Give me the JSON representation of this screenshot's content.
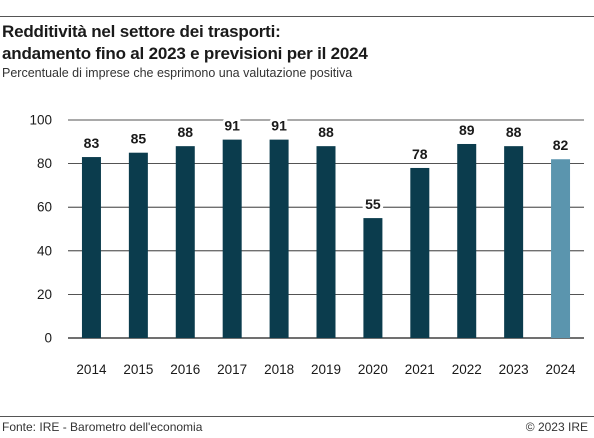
{
  "header": {
    "title_line1": "Redditività nel settore dei trasporti:",
    "title_line2": "andamento fino al 2023 e previsioni per il 2024",
    "subtitle": "Percentuale di imprese che esprimono una valutazione positiva"
  },
  "footer": {
    "source": "Fonte: IRE - Barometro dell'economia",
    "copyright": "© 2023 IRE"
  },
  "colors": {
    "actual": "#0b3c4d",
    "forecast": "#5b95ae",
    "grid": "#1a1a1a"
  },
  "chart_data": {
    "type": "bar",
    "title": "Redditività nel settore dei trasporti: andamento fino al 2023 e previsioni per il 2024",
    "subtitle": "Percentuale di imprese che esprimono una valutazione positiva",
    "categories": [
      "2014",
      "2015",
      "2016",
      "2017",
      "2018",
      "2019",
      "2020",
      "2021",
      "2022",
      "2023",
      "2024"
    ],
    "values": [
      83,
      85,
      88,
      91,
      91,
      88,
      55,
      78,
      89,
      88,
      82
    ],
    "forecast_categories": [
      "2024"
    ],
    "ylim": [
      0,
      100
    ],
    "yticks": [
      0,
      20,
      40,
      60,
      80,
      100
    ],
    "grid": true,
    "data_labels": true
  }
}
